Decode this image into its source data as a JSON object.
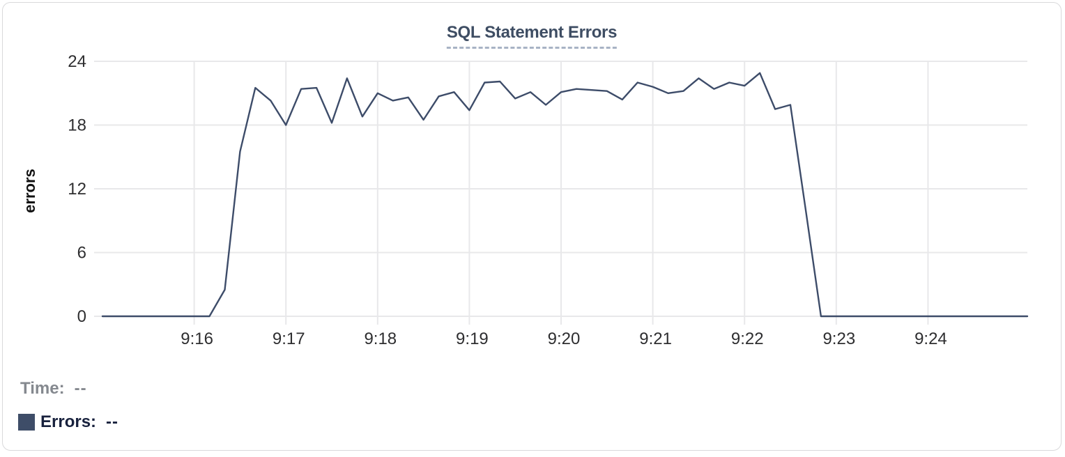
{
  "card": {
    "title": "SQL Statement Errors"
  },
  "chart_data": {
    "type": "line",
    "title": "SQL Statement Errors",
    "xlabel": "",
    "ylabel": "errors",
    "ylim": [
      0,
      24
    ],
    "y_ticks": [
      0,
      6,
      12,
      18,
      24
    ],
    "grid": true,
    "legend_position": "bottom-left",
    "x_start_time": "9:15:00",
    "sample_interval_seconds": 10,
    "x_domain_seconds": [
      0,
      605
    ],
    "x_ticks": [
      {
        "s": 60,
        "label": "9:16"
      },
      {
        "s": 120,
        "label": "9:17"
      },
      {
        "s": 180,
        "label": "9:18"
      },
      {
        "s": 240,
        "label": "9:19"
      },
      {
        "s": 300,
        "label": "9:20"
      },
      {
        "s": 360,
        "label": "9:21"
      },
      {
        "s": 420,
        "label": "9:22"
      },
      {
        "s": 480,
        "label": "9:23"
      },
      {
        "s": 540,
        "label": "9:24"
      }
    ],
    "series": [
      {
        "name": "Errors",
        "color": "#3d4c69",
        "points": [
          [
            0,
            0
          ],
          [
            10,
            0
          ],
          [
            20,
            0
          ],
          [
            30,
            0
          ],
          [
            40,
            0
          ],
          [
            50,
            0
          ],
          [
            60,
            0
          ],
          [
            70,
            0
          ],
          [
            80,
            2.5
          ],
          [
            90,
            15.5
          ],
          [
            100,
            21.5
          ],
          [
            110,
            20.3
          ],
          [
            120,
            18
          ],
          [
            130,
            21.4
          ],
          [
            140,
            21.5
          ],
          [
            150,
            18.2
          ],
          [
            160,
            22.4
          ],
          [
            170,
            18.8
          ],
          [
            180,
            21
          ],
          [
            190,
            20.3
          ],
          [
            200,
            20.6
          ],
          [
            210,
            18.5
          ],
          [
            220,
            20.7
          ],
          [
            230,
            21.1
          ],
          [
            240,
            19.4
          ],
          [
            250,
            22
          ],
          [
            260,
            22.1
          ],
          [
            270,
            20.5
          ],
          [
            280,
            21.1
          ],
          [
            290,
            19.9
          ],
          [
            300,
            21.1
          ],
          [
            310,
            21.4
          ],
          [
            320,
            21.3
          ],
          [
            330,
            21.2
          ],
          [
            340,
            20.4
          ],
          [
            350,
            22
          ],
          [
            360,
            21.6
          ],
          [
            370,
            21
          ],
          [
            380,
            21.2
          ],
          [
            390,
            22.4
          ],
          [
            400,
            21.4
          ],
          [
            410,
            22
          ],
          [
            420,
            21.7
          ],
          [
            430,
            22.9
          ],
          [
            440,
            19.5
          ],
          [
            450,
            19.9
          ],
          [
            460,
            10
          ],
          [
            470,
            0
          ],
          [
            480,
            0
          ],
          [
            490,
            0
          ],
          [
            500,
            0
          ],
          [
            510,
            0
          ],
          [
            520,
            0
          ],
          [
            530,
            0
          ],
          [
            540,
            0
          ],
          [
            550,
            0
          ],
          [
            560,
            0
          ],
          [
            570,
            0
          ],
          [
            580,
            0
          ],
          [
            590,
            0
          ],
          [
            600,
            0
          ],
          [
            605,
            0
          ]
        ]
      }
    ]
  },
  "legend": {
    "time_label": "Time:",
    "time_value": "--",
    "errors_label": "Errors:",
    "errors_value": "--",
    "swatch_color": "#3e4d68"
  },
  "colors": {
    "title": "#3e4d63",
    "title_underline": "#a8b3c5",
    "grid": "#e8e8ea",
    "axis_text": "#2e2e30",
    "ylabel_text": "#111111",
    "card_border": "#d9d9db"
  }
}
